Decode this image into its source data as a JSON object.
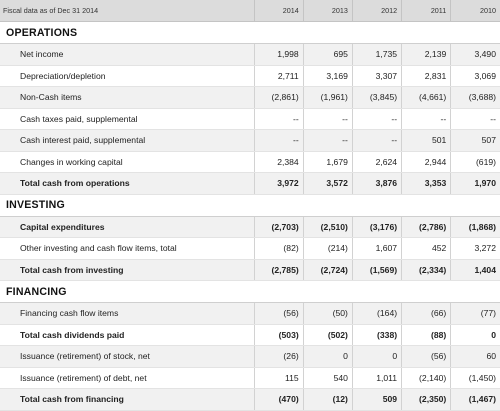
{
  "header": {
    "label": "Fiscal data as of Dec 31 2014",
    "years": [
      "2014",
      "2013",
      "2012",
      "2011",
      "2010"
    ]
  },
  "sections": [
    {
      "title": "OPERATIONS",
      "rows": [
        {
          "label": "Net income",
          "bold": false,
          "values": [
            "1,998",
            "695",
            "1,735",
            "2,139",
            "3,490"
          ]
        },
        {
          "label": "Depreciation/depletion",
          "bold": false,
          "values": [
            "2,711",
            "3,169",
            "3,307",
            "2,831",
            "3,069"
          ]
        },
        {
          "label": "Non-Cash items",
          "bold": false,
          "values": [
            "(2,861)",
            "(1,961)",
            "(3,845)",
            "(4,661)",
            "(3,688)"
          ]
        },
        {
          "label": "Cash taxes paid, supplemental",
          "bold": false,
          "values": [
            "--",
            "--",
            "--",
            "--",
            "--"
          ]
        },
        {
          "label": "Cash interest paid, supplemental",
          "bold": false,
          "values": [
            "--",
            "--",
            "--",
            "501",
            "507"
          ]
        },
        {
          "label": "Changes in working capital",
          "bold": false,
          "values": [
            "2,384",
            "1,679",
            "2,624",
            "2,944",
            "(619)"
          ]
        },
        {
          "label": "Total cash from operations",
          "bold": true,
          "values": [
            "3,972",
            "3,572",
            "3,876",
            "3,353",
            "1,970"
          ]
        }
      ]
    },
    {
      "title": "INVESTING",
      "rows": [
        {
          "label": "Capital expenditures",
          "bold": true,
          "values": [
            "(2,703)",
            "(2,510)",
            "(3,176)",
            "(2,786)",
            "(1,868)"
          ]
        },
        {
          "label": "Other investing and cash flow items, total",
          "bold": false,
          "values": [
            "(82)",
            "(214)",
            "1,607",
            "452",
            "3,272"
          ]
        },
        {
          "label": "Total cash from investing",
          "bold": true,
          "values": [
            "(2,785)",
            "(2,724)",
            "(1,569)",
            "(2,334)",
            "1,404"
          ]
        }
      ]
    },
    {
      "title": "FINANCING",
      "rows": [
        {
          "label": "Financing cash flow items",
          "bold": false,
          "values": [
            "(56)",
            "(50)",
            "(164)",
            "(66)",
            "(77)"
          ]
        },
        {
          "label": "Total cash dividends paid",
          "bold": true,
          "values": [
            "(503)",
            "(502)",
            "(338)",
            "(88)",
            "0"
          ]
        },
        {
          "label": "Issuance (retirement) of stock, net",
          "bold": false,
          "values": [
            "(26)",
            "0",
            "0",
            "(56)",
            "60"
          ]
        },
        {
          "label": "Issuance (retirement) of debt, net",
          "bold": false,
          "values": [
            "115",
            "540",
            "1,011",
            "(2,140)",
            "(1,450)"
          ]
        },
        {
          "label": "Total cash from financing",
          "bold": true,
          "values": [
            "(470)",
            "(12)",
            "509",
            "(2,350)",
            "(1,467)"
          ]
        }
      ]
    }
  ]
}
